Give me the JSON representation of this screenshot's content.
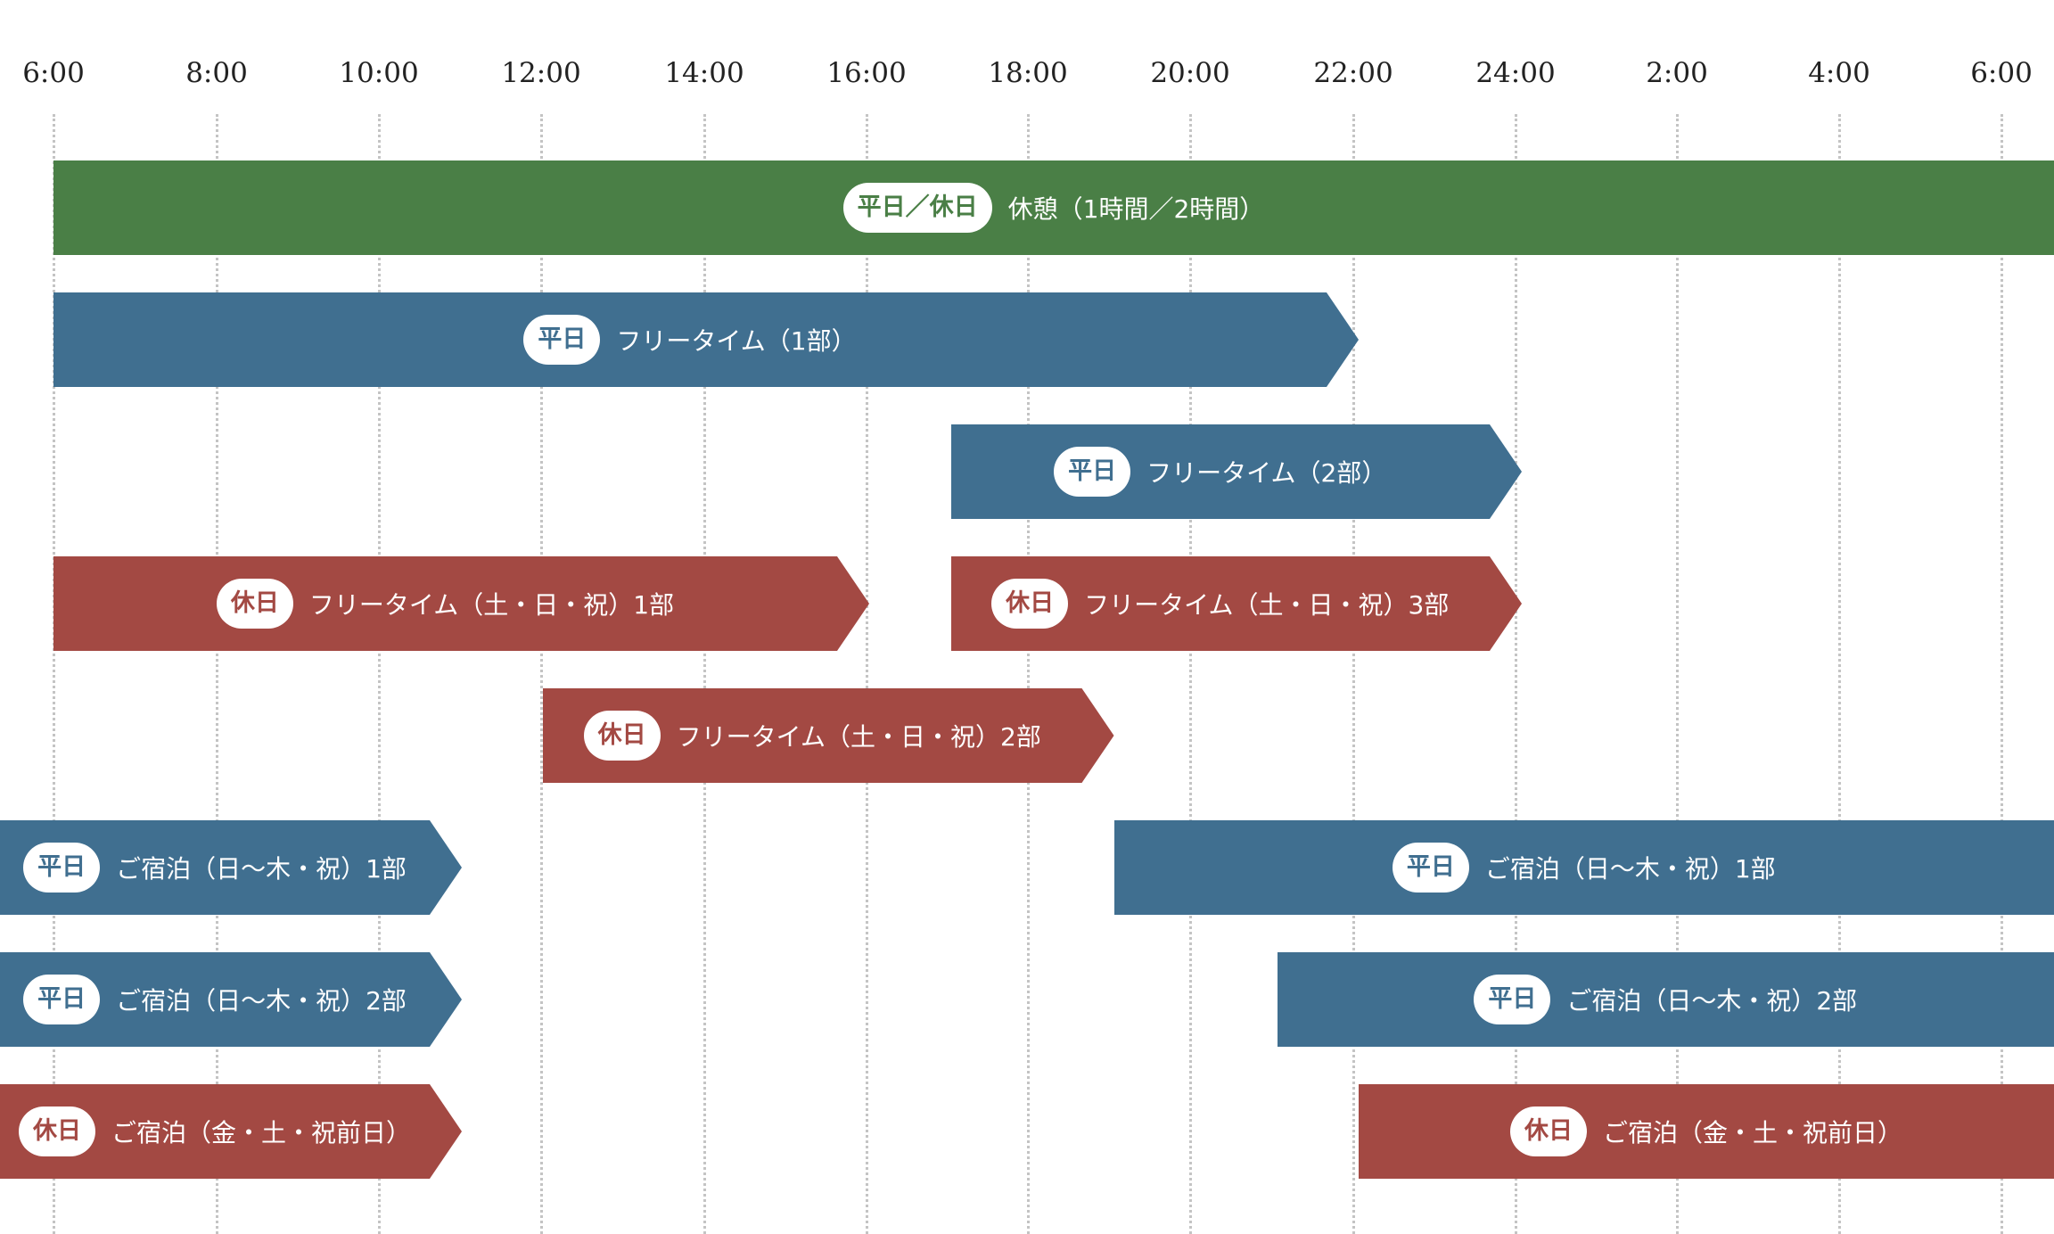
{
  "colors": {
    "green": "#4a7f46",
    "blue": "#406f90",
    "red": "#a34943"
  },
  "ticks": [
    "6:00",
    "8:00",
    "10:00",
    "12:00",
    "14:00",
    "16:00",
    "18:00",
    "20:00",
    "22:00",
    "24:00",
    "2:00",
    "4:00",
    "6:00"
  ],
  "bars": [
    {
      "tag": "平日／休日",
      "label": "休憩（1時間／2時間）",
      "color": "green",
      "start": "6:00",
      "end": "6:00 (next day)"
    },
    {
      "tag": "平日",
      "label": "フリータイム（1部）",
      "color": "blue",
      "start": "6:00",
      "end": "22:00"
    },
    {
      "tag": "平日",
      "label": "フリータイム（2部）",
      "color": "blue",
      "start": "17:00",
      "end": "24:00"
    },
    {
      "tag": "休日",
      "label": "フリータイム（土・日・祝）1部",
      "color": "red",
      "start": "6:00",
      "end": "16:00"
    },
    {
      "tag": "休日",
      "label": "フリータイム（土・日・祝）3部",
      "color": "red",
      "start": "17:00",
      "end": "24:00"
    },
    {
      "tag": "休日",
      "label": "フリータイム（土・日・祝）2部",
      "color": "red",
      "start": "12:00",
      "end": "19:00"
    },
    {
      "tag": "平日",
      "label": "ご宿泊（日〜木・祝）1部",
      "color": "blue",
      "start": "",
      "end": "11:00"
    },
    {
      "tag": "平日",
      "label": "ご宿泊（日〜木・祝）1部",
      "color": "blue",
      "start": "19:00",
      "end": ""
    },
    {
      "tag": "平日",
      "label": "ご宿泊（日〜木・祝）2部",
      "color": "blue",
      "start": "",
      "end": "11:00"
    },
    {
      "tag": "平日",
      "label": "ご宿泊（日〜木・祝）2部",
      "color": "blue",
      "start": "21:00",
      "end": ""
    },
    {
      "tag": "休日",
      "label": "ご宿泊（金・土・祝前日）",
      "color": "red",
      "start": "",
      "end": "11:00"
    },
    {
      "tag": "休日",
      "label": "ご宿泊（金・土・祝前日）",
      "color": "red",
      "start": "22:00",
      "end": ""
    }
  ]
}
